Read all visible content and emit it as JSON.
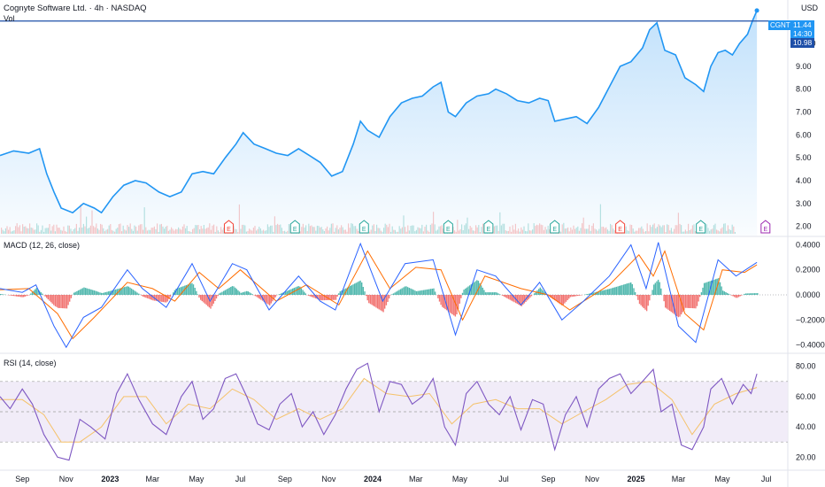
{
  "header": {
    "title": "Cognyte Software Ltd. · 4h · NASDAQ",
    "vol_label": "Vol",
    "currency": "USD"
  },
  "price_tags": {
    "ticker": "CGNT",
    "last": "11.44",
    "countdown": "14:30",
    "line_price": "10.98"
  },
  "indicators": {
    "macd_label": "MACD (12, 26, close)",
    "rsi_label": "RSI (14, close)"
  },
  "colors": {
    "price_line": "#2196f3",
    "price_fill_top": "#bbdefb",
    "horizontal_line": "#1e4fa8",
    "macd_line": "#2962ff",
    "signal_line": "#ff6d00",
    "hist_up": "#26a69a",
    "hist_down": "#ef5350",
    "rsi_line": "#7e57c2",
    "rsi_ma": "#f5c26b",
    "rsi_band": "#ede7f6",
    "earnings_red": "#f44336",
    "earnings_green": "#26a69a",
    "earnings_purple": "#9c27b0"
  },
  "chart_data": [
    {
      "type": "area",
      "name": "price",
      "ylim": [
        1.6,
        11.9
      ],
      "y_ticks": [
        "10.00",
        "9.00",
        "8.00",
        "7.00",
        "6.00",
        "5.00",
        "4.00",
        "3.00",
        "2.00"
      ],
      "x_ticks": [
        "Sep",
        "Nov",
        "2023",
        "Mar",
        "May",
        "Jul",
        "Sep",
        "Nov",
        "2024",
        "Mar",
        "May",
        "Jul",
        "Sep",
        "Nov",
        "2025",
        "Mar",
        "May",
        "Jul"
      ],
      "x_range": [
        "2022-08-01",
        "2025-07-31"
      ],
      "horizontal_line": 10.98,
      "last_value": 11.44,
      "points": [
        [
          "2022-08-01",
          5.1
        ],
        [
          "2022-08-20",
          5.3
        ],
        [
          "2022-09-10",
          5.2
        ],
        [
          "2022-09-25",
          5.4
        ],
        [
          "2022-10-05",
          4.3
        ],
        [
          "2022-10-15",
          3.5
        ],
        [
          "2022-10-25",
          2.8
        ],
        [
          "2022-11-10",
          2.6
        ],
        [
          "2022-11-25",
          3.0
        ],
        [
          "2022-12-10",
          2.8
        ],
        [
          "2022-12-20",
          2.6
        ],
        [
          "2023-01-05",
          3.3
        ],
        [
          "2023-01-20",
          3.8
        ],
        [
          "2023-02-05",
          4.0
        ],
        [
          "2023-02-20",
          3.9
        ],
        [
          "2023-03-10",
          3.5
        ],
        [
          "2023-03-25",
          3.3
        ],
        [
          "2023-04-10",
          3.5
        ],
        [
          "2023-04-25",
          4.3
        ],
        [
          "2023-05-10",
          4.4
        ],
        [
          "2023-05-25",
          4.3
        ],
        [
          "2023-06-10",
          5.0
        ],
        [
          "2023-06-25",
          5.6
        ],
        [
          "2023-07-05",
          6.1
        ],
        [
          "2023-07-20",
          5.6
        ],
        [
          "2023-08-05",
          5.4
        ],
        [
          "2023-08-20",
          5.2
        ],
        [
          "2023-09-05",
          5.1
        ],
        [
          "2023-09-20",
          5.4
        ],
        [
          "2023-10-05",
          5.1
        ],
        [
          "2023-10-20",
          4.8
        ],
        [
          "2023-11-05",
          4.2
        ],
        [
          "2023-11-20",
          4.4
        ],
        [
          "2023-12-05",
          5.6
        ],
        [
          "2023-12-15",
          6.6
        ],
        [
          "2023-12-25",
          6.2
        ],
        [
          "2024-01-10",
          5.9
        ],
        [
          "2024-01-25",
          6.8
        ],
        [
          "2024-02-10",
          7.4
        ],
        [
          "2024-02-25",
          7.6
        ],
        [
          "2024-03-10",
          7.7
        ],
        [
          "2024-03-25",
          8.1
        ],
        [
          "2024-04-05",
          8.3
        ],
        [
          "2024-04-15",
          7.0
        ],
        [
          "2024-04-25",
          6.8
        ],
        [
          "2024-05-10",
          7.4
        ],
        [
          "2024-05-25",
          7.7
        ],
        [
          "2024-06-10",
          7.8
        ],
        [
          "2024-06-20",
          8.0
        ],
        [
          "2024-07-05",
          7.8
        ],
        [
          "2024-07-20",
          7.5
        ],
        [
          "2024-08-05",
          7.4
        ],
        [
          "2024-08-20",
          7.6
        ],
        [
          "2024-09-01",
          7.5
        ],
        [
          "2024-09-10",
          6.6
        ],
        [
          "2024-09-25",
          6.7
        ],
        [
          "2024-10-10",
          6.8
        ],
        [
          "2024-10-25",
          6.5
        ],
        [
          "2024-11-10",
          7.2
        ],
        [
          "2024-11-25",
          8.1
        ],
        [
          "2024-12-10",
          9.0
        ],
        [
          "2024-12-25",
          9.2
        ],
        [
          "2025-01-10",
          9.8
        ],
        [
          "2025-01-20",
          10.6
        ],
        [
          "2025-01-30",
          10.9
        ],
        [
          "2025-02-10",
          9.7
        ],
        [
          "2025-02-25",
          9.5
        ],
        [
          "2025-03-10",
          8.5
        ],
        [
          "2025-03-25",
          8.2
        ],
        [
          "2025-04-05",
          7.9
        ],
        [
          "2025-04-15",
          9.0
        ],
        [
          "2025-04-25",
          9.6
        ],
        [
          "2025-05-05",
          9.7
        ],
        [
          "2025-05-15",
          9.5
        ],
        [
          "2025-05-25",
          10.0
        ],
        [
          "2025-06-05",
          10.4
        ],
        [
          "2025-06-12",
          11.0
        ],
        [
          "2025-06-18",
          11.44
        ]
      ],
      "earnings_markers": [
        {
          "date": "2023-06-15",
          "label": "E",
          "color": "red"
        },
        {
          "date": "2023-09-15",
          "label": "E",
          "color": "green"
        },
        {
          "date": "2023-12-20",
          "label": "E",
          "color": "green"
        },
        {
          "date": "2024-04-15",
          "label": "E",
          "color": "green"
        },
        {
          "date": "2024-06-10",
          "label": "E",
          "color": "green"
        },
        {
          "date": "2024-09-10",
          "label": "E",
          "color": "green"
        },
        {
          "date": "2024-12-10",
          "label": "E",
          "color": "red"
        },
        {
          "date": "2025-04-01",
          "label": "E",
          "color": "green"
        },
        {
          "date": "2025-06-30",
          "label": "E",
          "color": "purple"
        }
      ]
    },
    {
      "type": "line",
      "name": "macd",
      "ylim": [
        -0.46,
        0.46
      ],
      "y_ticks": [
        "0.4000",
        "0.2000",
        "0.0000",
        "−0.2000",
        "−0.4000"
      ],
      "macd_points": [
        [
          "2022-08-01",
          0.05
        ],
        [
          "2022-09-01",
          0.02
        ],
        [
          "2022-09-20",
          0.08
        ],
        [
          "2022-10-15",
          -0.25
        ],
        [
          "2022-11-01",
          -0.42
        ],
        [
          "2022-11-25",
          -0.18
        ],
        [
          "2022-12-20",
          -0.1
        ],
        [
          "2023-01-25",
          0.2
        ],
        [
          "2023-02-15",
          0.05
        ],
        [
          "2023-03-20",
          -0.1
        ],
        [
          "2023-04-25",
          0.25
        ],
        [
          "2023-05-20",
          -0.05
        ],
        [
          "2023-06-20",
          0.25
        ],
        [
          "2023-07-10",
          0.2
        ],
        [
          "2023-08-10",
          -0.12
        ],
        [
          "2023-09-20",
          0.15
        ],
        [
          "2023-10-20",
          -0.05
        ],
        [
          "2023-11-10",
          -0.12
        ],
        [
          "2023-12-15",
          0.41
        ],
        [
          "2024-01-15",
          -0.05
        ],
        [
          "2024-02-15",
          0.25
        ],
        [
          "2024-03-25",
          0.28
        ],
        [
          "2024-04-25",
          -0.32
        ],
        [
          "2024-05-25",
          0.2
        ],
        [
          "2024-06-20",
          0.15
        ],
        [
          "2024-07-25",
          -0.08
        ],
        [
          "2024-08-20",
          0.1
        ],
        [
          "2024-09-20",
          -0.2
        ],
        [
          "2024-10-20",
          -0.05
        ],
        [
          "2024-11-25",
          0.15
        ],
        [
          "2024-12-25",
          0.4
        ],
        [
          "2025-01-15",
          0.05
        ],
        [
          "2025-02-01",
          0.42
        ],
        [
          "2025-03-01",
          -0.25
        ],
        [
          "2025-03-25",
          -0.38
        ],
        [
          "2025-04-25",
          0.28
        ],
        [
          "2025-05-20",
          0.15
        ],
        [
          "2025-06-18",
          0.26
        ]
      ],
      "signal_points": [
        [
          "2022-08-01",
          0.04
        ],
        [
          "2022-09-10",
          0.05
        ],
        [
          "2022-10-20",
          -0.15
        ],
        [
          "2022-11-10",
          -0.35
        ],
        [
          "2022-12-10",
          -0.18
        ],
        [
          "2023-01-25",
          0.1
        ],
        [
          "2023-03-01",
          0.05
        ],
        [
          "2023-04-01",
          -0.05
        ],
        [
          "2023-05-05",
          0.18
        ],
        [
          "2023-06-01",
          0.05
        ],
        [
          "2023-07-01",
          0.2
        ],
        [
          "2023-08-20",
          -0.05
        ],
        [
          "2023-10-01",
          0.08
        ],
        [
          "2023-11-15",
          -0.08
        ],
        [
          "2023-12-25",
          0.35
        ],
        [
          "2024-01-25",
          0.05
        ],
        [
          "2024-03-01",
          0.22
        ],
        [
          "2024-04-05",
          0.2
        ],
        [
          "2024-05-05",
          -0.2
        ],
        [
          "2024-06-05",
          0.15
        ],
        [
          "2024-07-25",
          0.05
        ],
        [
          "2024-09-01",
          0.0
        ],
        [
          "2024-10-01",
          -0.12
        ],
        [
          "2024-11-25",
          0.08
        ],
        [
          "2025-01-05",
          0.32
        ],
        [
          "2025-01-25",
          0.15
        ],
        [
          "2025-02-10",
          0.35
        ],
        [
          "2025-03-10",
          -0.15
        ],
        [
          "2025-04-05",
          -0.28
        ],
        [
          "2025-05-01",
          0.2
        ],
        [
          "2025-06-01",
          0.18
        ],
        [
          "2025-06-18",
          0.24
        ]
      ]
    },
    {
      "type": "line",
      "name": "rsi",
      "ylim": [
        12,
        88
      ],
      "y_ticks": [
        "80.00",
        "60.00",
        "40.00",
        "20.00"
      ],
      "bands": [
        70,
        50,
        30
      ],
      "rsi_points": [
        [
          "2022-08-01",
          60
        ],
        [
          "2022-08-15",
          52
        ],
        [
          "2022-09-01",
          65
        ],
        [
          "2022-09-15",
          55
        ],
        [
          "2022-10-01",
          35
        ],
        [
          "2022-10-20",
          20
        ],
        [
          "2022-11-05",
          18
        ],
        [
          "2022-11-20",
          45
        ],
        [
          "2022-12-05",
          40
        ],
        [
          "2022-12-25",
          32
        ],
        [
          "2023-01-10",
          62
        ],
        [
          "2023-01-25",
          75
        ],
        [
          "2023-02-10",
          58
        ],
        [
          "2023-03-01",
          42
        ],
        [
          "2023-03-20",
          35
        ],
        [
          "2023-04-10",
          60
        ],
        [
          "2023-04-25",
          70
        ],
        [
          "2023-05-10",
          45
        ],
        [
          "2023-05-25",
          52
        ],
        [
          "2023-06-10",
          72
        ],
        [
          "2023-06-25",
          75
        ],
        [
          "2023-07-10",
          60
        ],
        [
          "2023-07-25",
          42
        ],
        [
          "2023-08-10",
          38
        ],
        [
          "2023-08-25",
          55
        ],
        [
          "2023-09-10",
          62
        ],
        [
          "2023-09-25",
          40
        ],
        [
          "2023-10-10",
          50
        ],
        [
          "2023-10-25",
          35
        ],
        [
          "2023-11-10",
          48
        ],
        [
          "2023-11-25",
          65
        ],
        [
          "2023-12-10",
          78
        ],
        [
          "2023-12-25",
          82
        ],
        [
          "2024-01-10",
          50
        ],
        [
          "2024-01-25",
          70
        ],
        [
          "2024-02-10",
          68
        ],
        [
          "2024-02-25",
          55
        ],
        [
          "2024-03-10",
          60
        ],
        [
          "2024-03-25",
          72
        ],
        [
          "2024-04-10",
          40
        ],
        [
          "2024-04-25",
          28
        ],
        [
          "2024-05-10",
          62
        ],
        [
          "2024-05-25",
          70
        ],
        [
          "2024-06-10",
          55
        ],
        [
          "2024-06-25",
          48
        ],
        [
          "2024-07-10",
          60
        ],
        [
          "2024-07-25",
          38
        ],
        [
          "2024-08-10",
          58
        ],
        [
          "2024-08-25",
          55
        ],
        [
          "2024-09-10",
          25
        ],
        [
          "2024-09-25",
          48
        ],
        [
          "2024-10-10",
          60
        ],
        [
          "2024-10-25",
          40
        ],
        [
          "2024-11-10",
          65
        ],
        [
          "2024-11-25",
          72
        ],
        [
          "2024-12-10",
          75
        ],
        [
          "2024-12-25",
          62
        ],
        [
          "2025-01-10",
          70
        ],
        [
          "2025-01-25",
          78
        ],
        [
          "2025-02-05",
          50
        ],
        [
          "2025-02-20",
          55
        ],
        [
          "2025-03-05",
          28
        ],
        [
          "2025-03-20",
          25
        ],
        [
          "2025-04-05",
          40
        ],
        [
          "2025-04-15",
          65
        ],
        [
          "2025-04-30",
          72
        ],
        [
          "2025-05-15",
          55
        ],
        [
          "2025-05-30",
          68
        ],
        [
          "2025-06-10",
          62
        ],
        [
          "2025-06-18",
          75
        ]
      ],
      "rsi_ma_points": [
        [
          "2022-08-01",
          58
        ],
        [
          "2022-09-01",
          58
        ],
        [
          "2022-10-01",
          48
        ],
        [
          "2022-10-25",
          30
        ],
        [
          "2022-11-20",
          30
        ],
        [
          "2022-12-20",
          40
        ],
        [
          "2023-01-20",
          60
        ],
        [
          "2023-02-20",
          60
        ],
        [
          "2023-03-20",
          42
        ],
        [
          "2023-04-20",
          55
        ],
        [
          "2023-05-20",
          52
        ],
        [
          "2023-06-20",
          65
        ],
        [
          "2023-07-20",
          58
        ],
        [
          "2023-08-20",
          45
        ],
        [
          "2023-09-20",
          52
        ],
        [
          "2023-10-20",
          45
        ],
        [
          "2023-11-20",
          52
        ],
        [
          "2023-12-20",
          72
        ],
        [
          "2024-01-20",
          62
        ],
        [
          "2024-02-20",
          60
        ],
        [
          "2024-03-20",
          62
        ],
        [
          "2024-04-20",
          42
        ],
        [
          "2024-05-20",
          55
        ],
        [
          "2024-06-20",
          58
        ],
        [
          "2024-07-20",
          52
        ],
        [
          "2024-08-20",
          52
        ],
        [
          "2024-09-20",
          42
        ],
        [
          "2024-10-20",
          50
        ],
        [
          "2024-11-20",
          58
        ],
        [
          "2024-12-20",
          68
        ],
        [
          "2025-01-20",
          70
        ],
        [
          "2025-02-20",
          58
        ],
        [
          "2025-03-20",
          35
        ],
        [
          "2025-04-20",
          55
        ],
        [
          "2025-05-20",
          62
        ],
        [
          "2025-06-18",
          66
        ]
      ]
    }
  ]
}
